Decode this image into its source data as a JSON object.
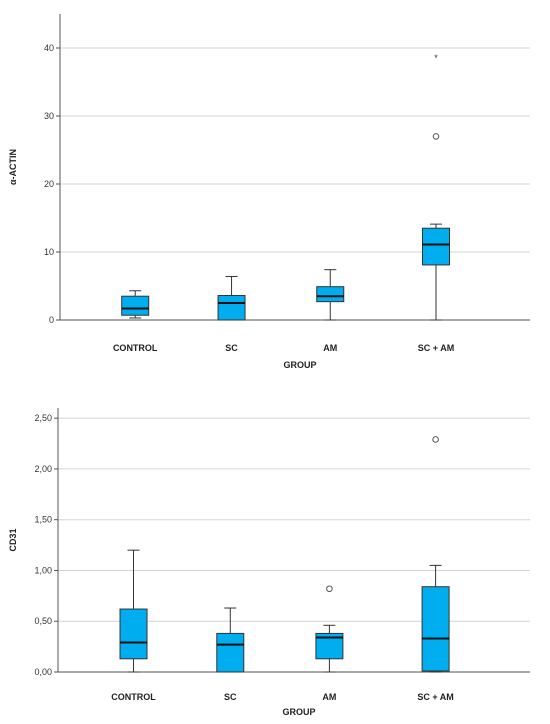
{
  "chart_data": [
    {
      "type": "boxplot",
      "xlabel": "GROUP",
      "ylabel": "α-ACTIN",
      "categories": [
        "CONTROL",
        "SC",
        "AM",
        "SC + AM"
      ],
      "ylim": [
        0,
        45
      ],
      "yticks": [
        "0",
        "10",
        "20",
        "30",
        "40"
      ],
      "ytick_values": [
        0,
        10,
        20,
        30,
        40
      ],
      "grid": true,
      "box_color": "#00aeef",
      "boxes": [
        {
          "category": "CONTROL",
          "min": 0.3,
          "q1": 0.7,
          "median": 1.7,
          "q3": 3.5,
          "max": 4.3,
          "outliers": [],
          "extremes": []
        },
        {
          "category": "SC",
          "min": 0.0,
          "q1": 0.0,
          "median": 2.5,
          "q3": 3.6,
          "max": 6.4,
          "outliers": [],
          "extremes": []
        },
        {
          "category": "AM",
          "min": 0.0,
          "q1": 2.7,
          "median": 3.5,
          "q3": 4.9,
          "max": 7.4,
          "outliers": [],
          "extremes": []
        },
        {
          "category": "SC + AM",
          "min": 0.0,
          "q1": 8.1,
          "median": 11.1,
          "q3": 13.5,
          "max": 14.1,
          "outliers": [
            27.0
          ],
          "extremes": [
            38.8
          ]
        }
      ]
    },
    {
      "type": "boxplot",
      "xlabel": "GROUP",
      "ylabel": "CD31",
      "categories": [
        "CONTROL",
        "SC",
        "AM",
        "SC + AM"
      ],
      "ylim": [
        0,
        2.6
      ],
      "yticks": [
        "0,00",
        "0,50",
        "1,00",
        "1,50",
        "2,00",
        "2,50"
      ],
      "ytick_values": [
        0,
        0.5,
        1.0,
        1.5,
        2.0,
        2.5
      ],
      "grid": true,
      "box_color": "#00aeef",
      "boxes": [
        {
          "category": "CONTROL",
          "min": 0.0,
          "q1": 0.13,
          "median": 0.29,
          "q3": 0.62,
          "max": 1.2,
          "outliers": [],
          "extremes": []
        },
        {
          "category": "SC",
          "min": 0.0,
          "q1": 0.0,
          "median": 0.27,
          "q3": 0.38,
          "max": 0.63,
          "outliers": [],
          "extremes": []
        },
        {
          "category": "AM",
          "min": 0.0,
          "q1": 0.13,
          "median": 0.34,
          "q3": 0.38,
          "max": 0.46,
          "outliers": [
            0.82
          ],
          "extremes": []
        },
        {
          "category": "SC + AM",
          "min": 0.0,
          "q1": 0.01,
          "median": 0.33,
          "q3": 0.84,
          "max": 1.05,
          "outliers": [
            2.29
          ],
          "extremes": []
        }
      ]
    }
  ]
}
